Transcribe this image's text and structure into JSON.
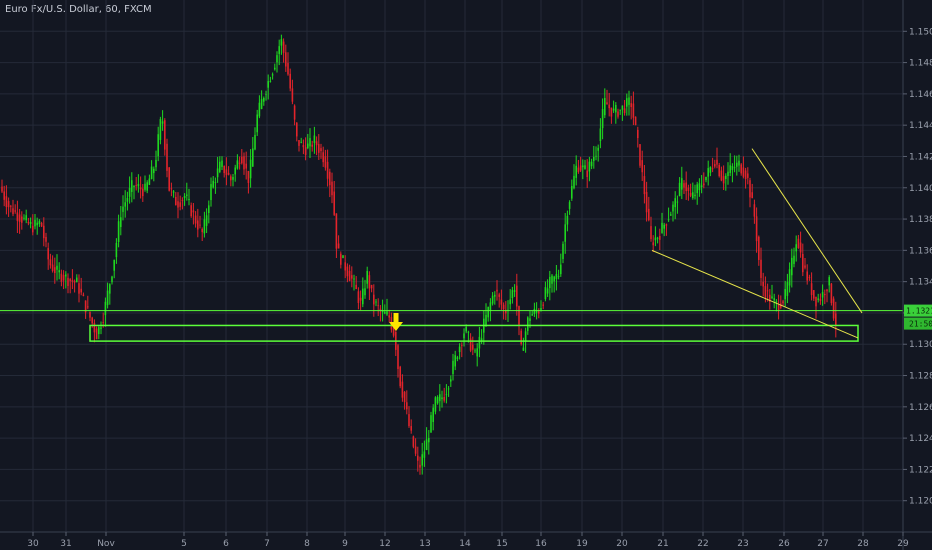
{
  "header": {
    "title": "Euro Fx/U.S. Dollar, 60, FXCM"
  },
  "colors": {
    "background": "#131722",
    "grid": "#242a38",
    "up": "#1fd81f",
    "down": "#e3242b",
    "zone": "#5cff3a",
    "trendline": "#e6e44a",
    "arrow": "#ffe500",
    "axis_text": "#9aa0ad"
  },
  "price_badges": {
    "price": "1.13215",
    "countdown": "21:50"
  },
  "chart_data": {
    "type": "candlestick",
    "title": "Euro Fx/U.S. Dollar, 60, FXCM",
    "ylim": [
      1.118,
      1.152
    ],
    "y_ticks": [
      "1.15000",
      "1.14800",
      "1.14600",
      "1.14400",
      "1.14200",
      "1.14000",
      "1.13800",
      "1.13600",
      "1.13400",
      "1.13200",
      "1.13000",
      "1.12800",
      "1.12600",
      "1.12400",
      "1.12200",
      "1.12000"
    ],
    "x_ticks": [
      "30",
      "31",
      "Nov",
      "5",
      "6",
      "7",
      "8",
      "9",
      "12",
      "13",
      "14",
      "15",
      "16",
      "19",
      "20",
      "21",
      "22",
      "23",
      "26",
      "27",
      "28",
      "29"
    ],
    "price_path": [
      [
        0,
        1.1402
      ],
      [
        10,
        1.1388
      ],
      [
        20,
        1.1382
      ],
      [
        33,
        1.1375
      ],
      [
        42,
        1.1378
      ],
      [
        50,
        1.1352
      ],
      [
        58,
        1.1346
      ],
      [
        68,
        1.1342
      ],
      [
        78,
        1.1339
      ],
      [
        88,
        1.1322
      ],
      [
        98,
        1.1306
      ],
      [
        105,
        1.132
      ],
      [
        114,
        1.135
      ],
      [
        122,
        1.1385
      ],
      [
        134,
        1.1402
      ],
      [
        146,
        1.1398
      ],
      [
        156,
        1.1415
      ],
      [
        163,
        1.1448
      ],
      [
        170,
        1.14
      ],
      [
        178,
        1.139
      ],
      [
        186,
        1.1395
      ],
      [
        196,
        1.138
      ],
      [
        204,
        1.137
      ],
      [
        212,
        1.14
      ],
      [
        222,
        1.1415
      ],
      [
        232,
        1.1405
      ],
      [
        242,
        1.1422
      ],
      [
        250,
        1.1405
      ],
      [
        258,
        1.1445
      ],
      [
        266,
        1.1462
      ],
      [
        275,
        1.1478
      ],
      [
        282,
        1.1495
      ],
      [
        290,
        1.147
      ],
      [
        298,
        1.143
      ],
      [
        306,
        1.1425
      ],
      [
        316,
        1.143
      ],
      [
        326,
        1.1418
      ],
      [
        334,
        1.1395
      ],
      [
        338,
        1.136
      ],
      [
        346,
        1.135
      ],
      [
        354,
        1.134
      ],
      [
        362,
        1.1325
      ],
      [
        368,
        1.1345
      ],
      [
        374,
        1.1328
      ],
      [
        382,
        1.132
      ],
      [
        390,
        1.1318
      ],
      [
        396,
        1.1305
      ],
      [
        400,
        1.128
      ],
      [
        406,
        1.1262
      ],
      [
        410,
        1.1248
      ],
      [
        414,
        1.1236
      ],
      [
        420,
        1.122
      ],
      [
        428,
        1.1238
      ],
      [
        436,
        1.1262
      ],
      [
        446,
        1.1268
      ],
      [
        456,
        1.129
      ],
      [
        466,
        1.131
      ],
      [
        476,
        1.1292
      ],
      [
        486,
        1.1315
      ],
      [
        496,
        1.1335
      ],
      [
        506,
        1.132
      ],
      [
        516,
        1.1338
      ],
      [
        522,
        1.1295
      ],
      [
        530,
        1.1318
      ],
      [
        540,
        1.1322
      ],
      [
        550,
        1.1338
      ],
      [
        560,
        1.1345
      ],
      [
        568,
        1.1385
      ],
      [
        578,
        1.1415
      ],
      [
        588,
        1.141
      ],
      [
        598,
        1.1425
      ],
      [
        606,
        1.1455
      ],
      [
        614,
        1.1448
      ],
      [
        622,
        1.145
      ],
      [
        632,
        1.1455
      ],
      [
        638,
        1.1432
      ],
      [
        646,
        1.1395
      ],
      [
        652,
        1.1365
      ],
      [
        660,
        1.137
      ],
      [
        668,
        1.138
      ],
      [
        676,
        1.139
      ],
      [
        684,
        1.1405
      ],
      [
        692,
        1.1393
      ],
      [
        700,
        1.14
      ],
      [
        708,
        1.1408
      ],
      [
        716,
        1.1418
      ],
      [
        724,
        1.1405
      ],
      [
        732,
        1.1412
      ],
      [
        740,
        1.1415
      ],
      [
        748,
        1.1408
      ],
      [
        756,
        1.138
      ],
      [
        762,
        1.134
      ],
      [
        770,
        1.133
      ],
      [
        778,
        1.1325
      ],
      [
        786,
        1.133
      ],
      [
        792,
        1.1348
      ],
      [
        798,
        1.137
      ],
      [
        804,
        1.135
      ],
      [
        810,
        1.134
      ],
      [
        816,
        1.1328
      ],
      [
        822,
        1.133
      ],
      [
        830,
        1.134
      ],
      [
        836,
        1.1314
      ]
    ],
    "support_zone": {
      "price_top": 1.1312,
      "price_bottom": 1.1302,
      "x_start": 90,
      "x_end": 858
    },
    "current_price_line": 1.13215,
    "wedge_upper": [
      [
        752,
        1.1425
      ],
      [
        862,
        1.132
      ]
    ],
    "wedge_lower": [
      [
        652,
        1.136
      ],
      [
        858,
        1.1304
      ]
    ]
  }
}
